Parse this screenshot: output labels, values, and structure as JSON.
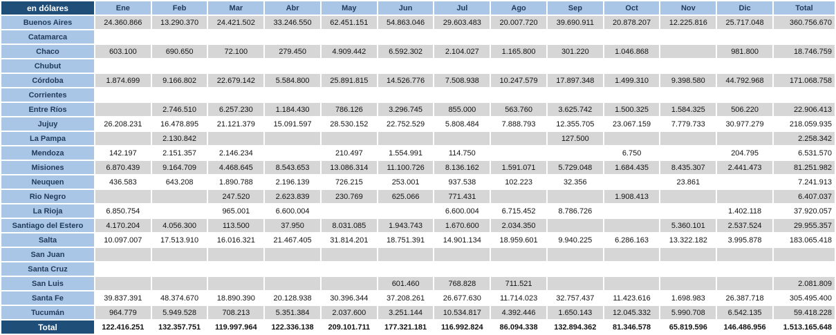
{
  "table": {
    "corner_label": "en dólares",
    "columns": [
      "Ene",
      "Feb",
      "Mar",
      "Abr",
      "May",
      "Jun",
      "Jul",
      "Ago",
      "Sep",
      "Oct",
      "Nov",
      "Dic",
      "Total"
    ],
    "rows": [
      {
        "label": "Buenos Aires",
        "values": [
          "24.360.866",
          "13.290.370",
          "24.421.502",
          "33.246.550",
          "62.451.151",
          "54.863.046",
          "29.603.483",
          "20.007.720",
          "39.690.911",
          "20.878.207",
          "12.225.816",
          "25.717.048",
          "360.756.670"
        ]
      },
      {
        "label": "Catamarca",
        "values": [
          "",
          "",
          "",
          "",
          "",
          "",
          "",
          "",
          "",
          "",
          "",
          "",
          ""
        ]
      },
      {
        "label": "Chaco",
        "values": [
          "603.100",
          "690.650",
          "72.100",
          "279.450",
          "4.909.442",
          "6.592.302",
          "2.104.027",
          "1.165.800",
          "301.220",
          "1.046.868",
          "",
          "981.800",
          "18.746.759"
        ]
      },
      {
        "label": "Chubut",
        "values": [
          "",
          "",
          "",
          "",
          "",
          "",
          "",
          "",
          "",
          "",
          "",
          "",
          ""
        ]
      },
      {
        "label": "Córdoba",
        "values": [
          "1.874.699",
          "9.166.802",
          "22.679.142",
          "5.584.800",
          "25.891.815",
          "14.526.776",
          "7.508.938",
          "10.247.579",
          "17.897.348",
          "1.499.310",
          "9.398.580",
          "44.792.968",
          "171.068.758"
        ]
      },
      {
        "label": "Corrientes",
        "values": [
          "",
          "",
          "",
          "",
          "",
          "",
          "",
          "",
          "",
          "",
          "",
          "",
          ""
        ]
      },
      {
        "label": "Entre Ríos",
        "values": [
          "",
          "2.746.510",
          "6.257.230",
          "1.184.430",
          "786.126",
          "3.296.745",
          "855.000",
          "563.760",
          "3.625.742",
          "1.500.325",
          "1.584.325",
          "506.220",
          "22.906.413"
        ]
      },
      {
        "label": "Jujuy",
        "values": [
          "26.208.231",
          "16.478.895",
          "21.121.379",
          "15.091.597",
          "28.530.152",
          "22.752.529",
          "5.808.484",
          "7.888.793",
          "12.355.705",
          "23.067.159",
          "7.779.733",
          "30.977.279",
          "218.059.935"
        ]
      },
      {
        "label": "La Pampa",
        "values": [
          "",
          "2.130.842",
          "",
          "",
          "",
          "",
          "",
          "",
          "127.500",
          "",
          "",
          "",
          "2.258.342"
        ]
      },
      {
        "label": "Mendoza",
        "values": [
          "142.197",
          "2.151.357",
          "2.146.234",
          "",
          "210.497",
          "1.554.991",
          "114.750",
          "",
          "",
          "6.750",
          "",
          "204.795",
          "6.531.570"
        ]
      },
      {
        "label": "Misiones",
        "values": [
          "6.870.439",
          "9.164.709",
          "4.468.645",
          "8.543.653",
          "13.086.314",
          "11.100.726",
          "8.136.162",
          "1.591.071",
          "5.729.048",
          "1.684.435",
          "8.435.307",
          "2.441.473",
          "81.251.982"
        ]
      },
      {
        "label": "Neuquen",
        "values": [
          "436.583",
          "643.208",
          "1.890.788",
          "2.196.139",
          "726.215",
          "253.001",
          "937.538",
          "102.223",
          "32.356",
          "",
          "23.861",
          "",
          "7.241.913"
        ]
      },
      {
        "label": "Rio Negro",
        "values": [
          "",
          "",
          "247.520",
          "2.623.839",
          "230.769",
          "625.066",
          "771.431",
          "",
          "",
          "1.908.413",
          "",
          "",
          "6.407.037"
        ]
      },
      {
        "label": "La Rioja",
        "values": [
          "6.850.754",
          "",
          "965.001",
          "6.600.004",
          "",
          "",
          "6.600.004",
          "6.715.452",
          "8.786.726",
          "",
          "",
          "1.402.118",
          "37.920.057"
        ]
      },
      {
        "label": "Santiago del Estero",
        "values": [
          "4.170.204",
          "4.056.300",
          "113.500",
          "37.950",
          "8.031.085",
          "1.943.743",
          "1.670.600",
          "2.034.350",
          "",
          "",
          "5.360.101",
          "2.537.524",
          "29.955.357"
        ]
      },
      {
        "label": "Salta",
        "values": [
          "10.097.007",
          "17.513.910",
          "16.016.321",
          "21.467.405",
          "31.814.201",
          "18.751.391",
          "14.901.134",
          "18.959.601",
          "9.940.225",
          "6.286.163",
          "13.322.182",
          "3.995.878",
          "183.065.418"
        ]
      },
      {
        "label": "San Juan",
        "values": [
          "",
          "",
          "",
          "",
          "",
          "",
          "",
          "",
          "",
          "",
          "",
          "",
          ""
        ]
      },
      {
        "label": "Santa Cruz",
        "values": [
          "",
          "",
          "",
          "",
          "",
          "",
          "",
          "",
          "",
          "",
          "",
          "",
          ""
        ]
      },
      {
        "label": "San Luis",
        "values": [
          "",
          "",
          "",
          "",
          "",
          "601.460",
          "768.828",
          "711.521",
          "",
          "",
          "",
          "",
          "2.081.809"
        ]
      },
      {
        "label": "Santa Fe",
        "values": [
          "39.837.391",
          "48.374.670",
          "18.890.390",
          "20.128.938",
          "30.396.344",
          "37.208.261",
          "26.677.630",
          "11.714.023",
          "32.757.437",
          "11.423.616",
          "1.698.983",
          "26.387.718",
          "305.495.400"
        ]
      },
      {
        "label": "Tucumán",
        "values": [
          "964.779",
          "5.949.528",
          "708.213",
          "5.351.384",
          "2.037.600",
          "3.251.144",
          "10.534.817",
          "4.392.446",
          "1.650.143",
          "12.045.332",
          "5.990.708",
          "6.542.135",
          "59.418.228"
        ]
      }
    ],
    "total": {
      "label": "Total",
      "values": [
        "122.416.251",
        "132.357.751",
        "119.997.964",
        "122.336.138",
        "209.101.711",
        "177.321.181",
        "116.992.824",
        "86.094.338",
        "132.894.362",
        "81.346.578",
        "65.819.596",
        "146.486.956",
        "1.513.165.648"
      ]
    }
  }
}
